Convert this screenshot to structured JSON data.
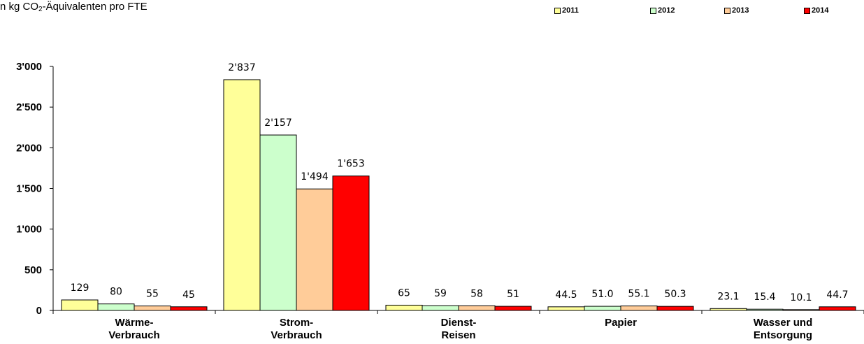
{
  "chart_data": {
    "type": "bar",
    "subtitle_parts": [
      "n kg CO",
      "2",
      "-Äquivalenten pro FTE"
    ],
    "categories": [
      [
        "Wärme-",
        "Verbrauch"
      ],
      [
        "Strom-",
        "Verbrauch"
      ],
      [
        "Dienst-",
        "Reisen"
      ],
      [
        "Papier"
      ],
      [
        "Wasser und",
        "Entsorgung"
      ]
    ],
    "series": [
      {
        "name": "2011",
        "color": "#ffff99",
        "values": [
          129,
          2837,
          65,
          44.5,
          23.1
        ],
        "labels": [
          "129",
          "2'837",
          "65",
          "44.5",
          "23.1"
        ]
      },
      {
        "name": "2012",
        "color": "#ccffcc",
        "values": [
          80,
          2157,
          59,
          51.0,
          15.4
        ],
        "labels": [
          "80",
          "2'157",
          "59",
          "51.0",
          "15.4"
        ]
      },
      {
        "name": "2013",
        "color": "#ffcc99",
        "values": [
          55,
          1494,
          58,
          55.1,
          10.1
        ],
        "labels": [
          "55",
          "1'494",
          "58",
          "55.1",
          "10.1"
        ]
      },
      {
        "name": "2014",
        "color": "#ff0000",
        "values": [
          45,
          1653,
          51,
          50.3,
          44.7
        ],
        "labels": [
          "45",
          "1'653",
          "51",
          "50.3",
          "44.7"
        ]
      }
    ],
    "yticks": [
      0,
      500,
      1000,
      1500,
      2000,
      2500,
      3000
    ],
    "ytick_labels": [
      "0",
      "500",
      "1'000",
      "1'500",
      "2'000",
      "2'500",
      "3'000"
    ],
    "ylim": [
      0,
      3000
    ],
    "legend_position": "top-right",
    "grid": false
  }
}
